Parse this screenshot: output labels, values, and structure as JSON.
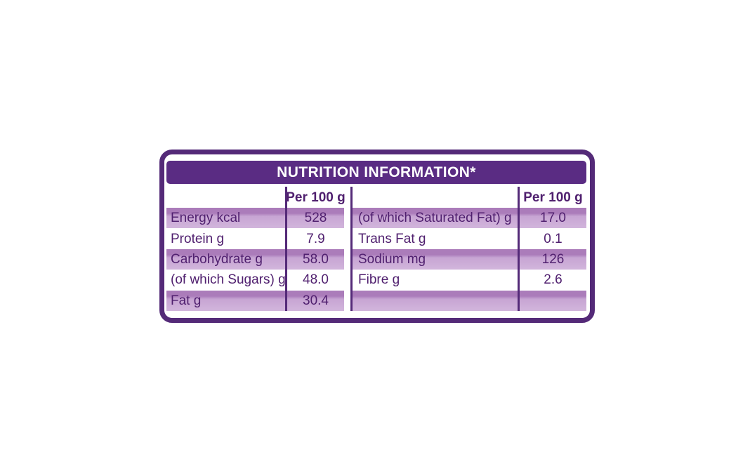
{
  "page": {
    "background": "#ffffff"
  },
  "label": {
    "title": "NUTRITION INFORMATION*",
    "colors": {
      "outer_border": "#542a78",
      "header_bg": "#5a2c83",
      "header_text": "#ffffff",
      "divider": "#542a78",
      "text": "#50206f",
      "shade_top": "#ab7cba",
      "shade_mid": "#c7a5d3",
      "shade_bottom": "#d2b5dc",
      "background": "#ffffff"
    },
    "left_table": {
      "value_header": "Per 100 g",
      "rows": [
        {
          "label": "Energy kcal",
          "value": "528",
          "shaded": true
        },
        {
          "label": "Protein g",
          "value": "7.9",
          "shaded": false
        },
        {
          "label": "Carbohydrate g",
          "value": "58.0",
          "shaded": true
        },
        {
          "label": "(of which Sugars) g",
          "value": "48.0",
          "shaded": false
        },
        {
          "label": "Fat g",
          "value": "30.4",
          "shaded": true
        }
      ]
    },
    "right_table": {
      "value_header": "Per 100 g",
      "rows": [
        {
          "label": "(of which Saturated Fat) g",
          "value": "17.0",
          "shaded": true
        },
        {
          "label": "Trans Fat g",
          "value": "0.1",
          "shaded": false
        },
        {
          "label": "Sodium mg",
          "value": "126",
          "shaded": true
        },
        {
          "label": "Fibre g",
          "value": "2.6",
          "shaded": false
        },
        {
          "label": "",
          "value": "",
          "shaded": true
        }
      ]
    }
  }
}
